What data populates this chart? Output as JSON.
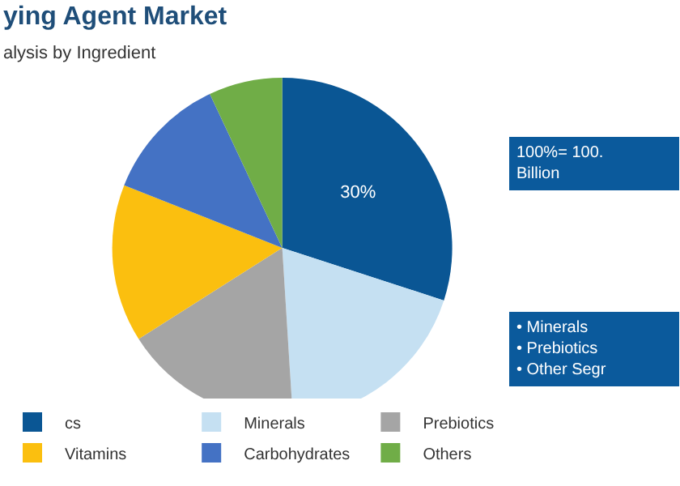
{
  "chart_data": {
    "type": "pie",
    "title": "ying Agent Market",
    "subtitle": "alysis by Ingredient",
    "categories": [
      "cs",
      "Minerals",
      "Prebiotics",
      "Vitamins",
      "Carbohydrates",
      "Others"
    ],
    "values": [
      30,
      19,
      17,
      15,
      12,
      7
    ],
    "colors": [
      "#0a5694",
      "#c5e0f2",
      "#a5a5a5",
      "#fbbf0f",
      "#4472c4",
      "#70ad47"
    ],
    "value_labels": [
      "30%",
      null,
      null,
      null,
      null,
      null
    ],
    "legend": "bottom",
    "annotations": [
      "100%= 100.\nBillion",
      "• Minerals\n• Prebiotics\n• Other Segr"
    ]
  }
}
